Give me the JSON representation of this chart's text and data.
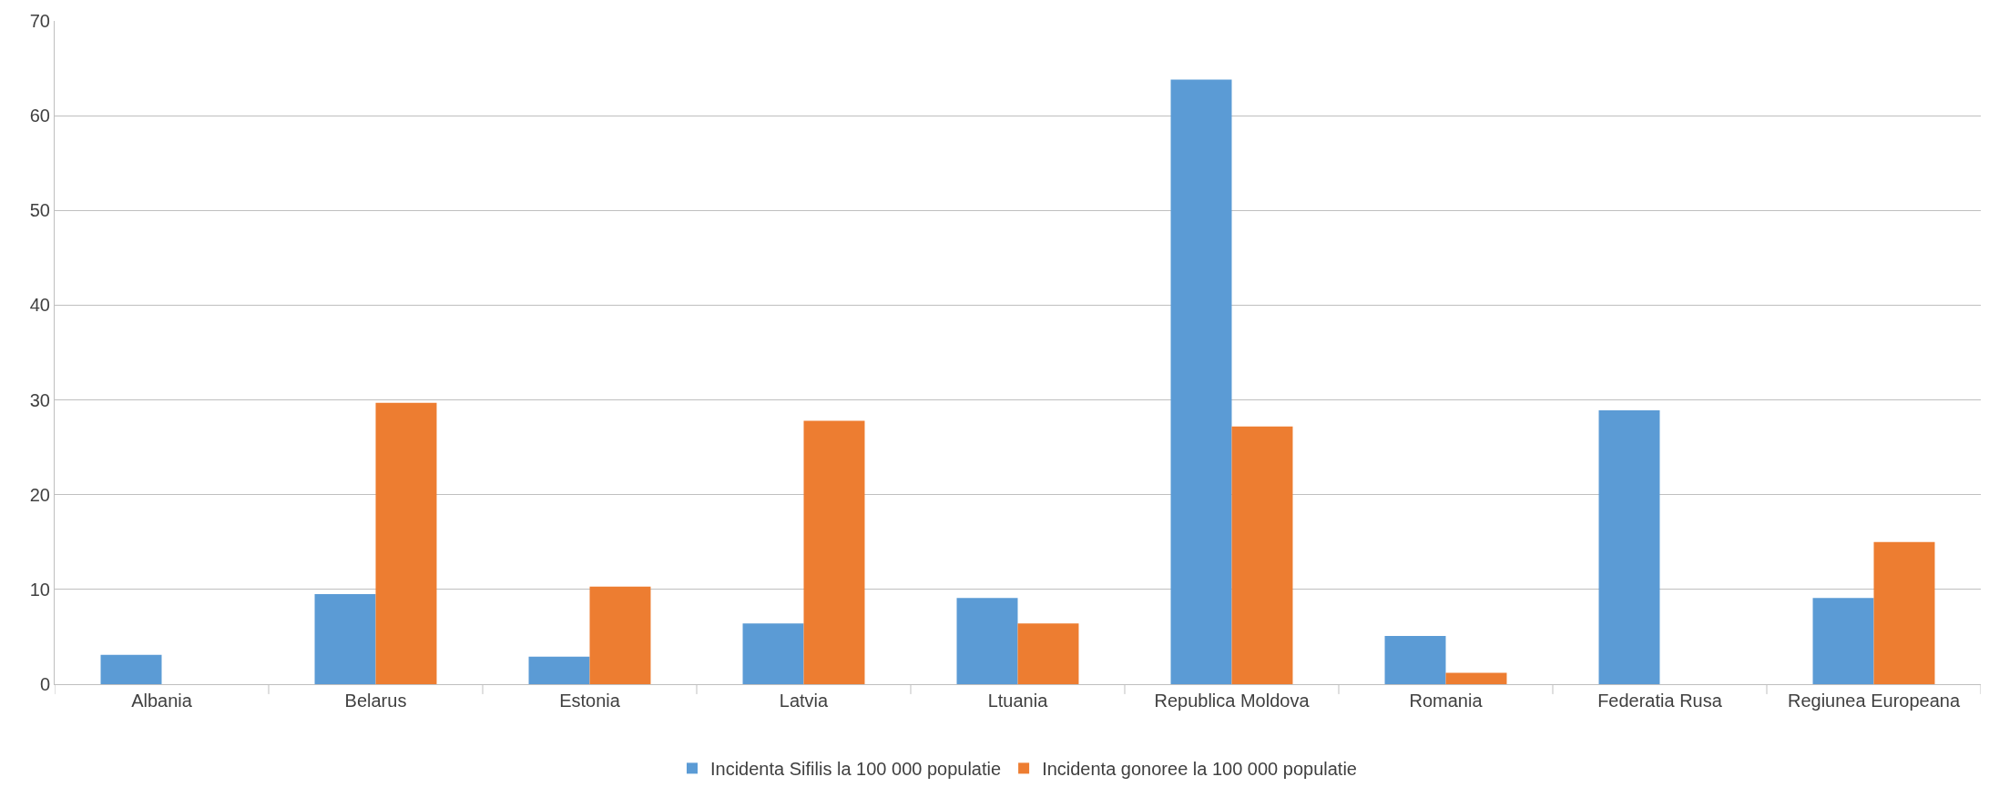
{
  "chart_data": {
    "type": "bar",
    "categories": [
      "Albania",
      "Belarus",
      "Estonia",
      "Latvia",
      "Ltuania",
      "Republica Moldova",
      "Romania",
      "Federatia Rusa",
      "Regiunea Europeana"
    ],
    "series": [
      {
        "name": "Incidenta Sifilis la 100 000 populatie",
        "color": "#5b9bd5",
        "values": [
          3.1,
          9.5,
          2.9,
          6.4,
          9.1,
          63.8,
          5.1,
          28.9,
          9.1
        ]
      },
      {
        "name": "Incidenta gonoree la 100 000 populatie",
        "color": "#ed7d31",
        "values": [
          null,
          29.7,
          10.3,
          27.8,
          6.4,
          27.2,
          1.2,
          null,
          15.0
        ]
      }
    ],
    "ylim": [
      0,
      70
    ],
    "yticks": [
      0,
      10,
      20,
      30,
      40,
      50,
      60,
      70
    ],
    "grid": "y",
    "legend": "bottom"
  }
}
